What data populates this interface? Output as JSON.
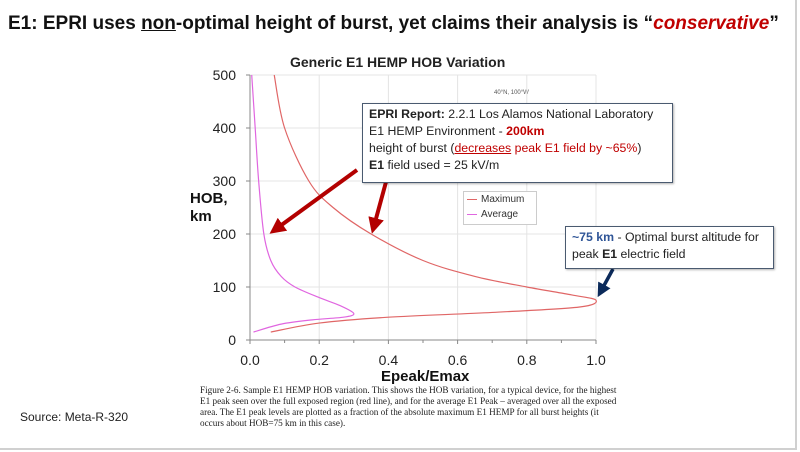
{
  "slide": {
    "title_prefix": "E1:  EPRI uses ",
    "title_underlined": "non",
    "title_mid": "-optimal height of burst, yet claims their analysis is “",
    "title_emph": "conservative",
    "title_suffix": "”",
    "source": "Source: Meta-R-320",
    "caption": "Figure 2-6. Sample E1 HEMP HOB variation.  This shows the HOB variation, for a typical device, for the highest E1 peak seen over the full exposed region (red line), and for the average E1 Peak – averaged over all the exposed area.  The E1 peak levels are plotted as a fraction of the absolute maximum E1 HEMP for all burst heights (it occurs about HOB=75 km in this case)."
  },
  "callouts": {
    "epri": {
      "bold": "EPRI Report:",
      "text1": "  2.2.1 Los Alamos National Laboratory E1 HEMP Environment - ",
      "red_bold": "200km",
      "text2": " height of burst (",
      "red_under": "decreases",
      "red_text": " peak E1 field by ~65%",
      "text3": ")",
      "bold2": "E1",
      "text4": " field used = 25 kV/m"
    },
    "optimal": {
      "blue_bold": "~75 km",
      "text1": " - Optimal burst altitude for peak ",
      "bold": "E1",
      "text2": " electric field"
    }
  },
  "colors": {
    "maximum": "#e06666",
    "average": "#e066e0",
    "arrow_red": "#b30000",
    "arrow_navy": "#0b2a5a"
  },
  "chart_data": {
    "type": "line",
    "title": "Generic E1 HEMP HOB Variation",
    "annotation": "40°N, 100°W",
    "xlabel": "Epeak/Emax",
    "ylabel_line1": "HOB,",
    "ylabel_line2": "km",
    "xlim": [
      0,
      1
    ],
    "ylim": [
      0,
      500
    ],
    "xticks": [
      "0.0",
      "0.2",
      "0.4",
      "0.6",
      "0.8",
      "1.0"
    ],
    "yticks": [
      "0",
      "100",
      "200",
      "300",
      "400",
      "500"
    ],
    "grid": true,
    "legend": "upper-center-right",
    "series": [
      {
        "name": "Maximum",
        "points": [
          [
            0.07,
            500
          ],
          [
            0.1,
            400
          ],
          [
            0.17,
            300
          ],
          [
            0.24,
            250
          ],
          [
            0.35,
            200
          ],
          [
            0.5,
            150
          ],
          [
            0.65,
            120
          ],
          [
            0.8,
            100
          ],
          [
            0.93,
            85
          ],
          [
            1.0,
            75
          ],
          [
            0.95,
            62
          ],
          [
            0.7,
            52
          ],
          [
            0.4,
            43
          ],
          [
            0.2,
            32
          ],
          [
            0.06,
            15
          ]
        ]
      },
      {
        "name": "Average",
        "points": [
          [
            0.005,
            500
          ],
          [
            0.015,
            400
          ],
          [
            0.025,
            300
          ],
          [
            0.04,
            200
          ],
          [
            0.06,
            150
          ],
          [
            0.09,
            120
          ],
          [
            0.13,
            100
          ],
          [
            0.2,
            80
          ],
          [
            0.26,
            65
          ],
          [
            0.3,
            50
          ],
          [
            0.27,
            43
          ],
          [
            0.18,
            38
          ],
          [
            0.09,
            30
          ],
          [
            0.01,
            15
          ]
        ]
      }
    ]
  }
}
